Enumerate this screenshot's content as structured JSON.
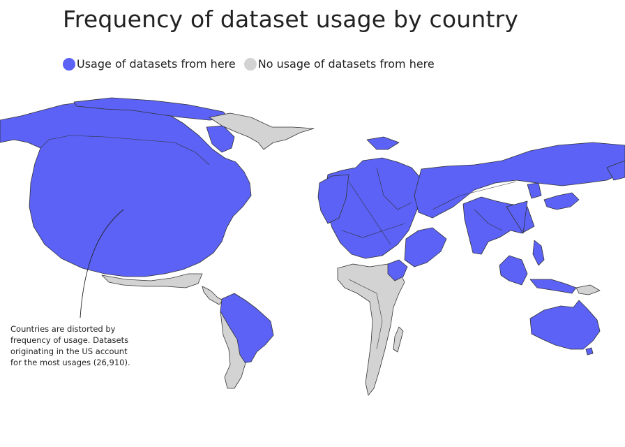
{
  "title": "Frequency of dataset usage by country",
  "legend": [
    {
      "label": "Usage of datasets from here",
      "color": "#5b62f5"
    },
    {
      "label": "No usage of datasets from here",
      "color": "#d3d3d3"
    }
  ],
  "annotation": {
    "lines": [
      "Countries are distorted by",
      "frequency of usage. Datasets",
      "originating in the US account",
      "for the most usages (26,910)."
    ]
  },
  "colors": {
    "used": "#5b62f5",
    "unused": "#d3d3d3",
    "border": "#333333"
  },
  "chart_data": {
    "type": "map",
    "title": "Frequency of dataset usage by country",
    "max_usage": {
      "country": "US",
      "value": 26910
    },
    "categories": [
      "Usage of datasets from here",
      "No usage of datasets from here"
    ]
  }
}
